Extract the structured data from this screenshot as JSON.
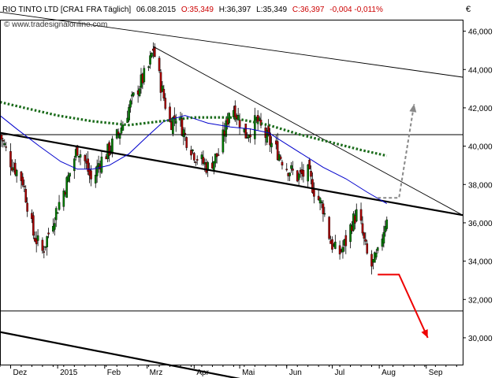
{
  "header": {
    "instrument": "RIO TINTO LTD [CRA1 FRA  Täglich]",
    "date": "06.08.2015",
    "open": "O:35,349",
    "high": "H:36,397",
    "low": "L:35,349",
    "close": "C:36,397",
    "change": "-0,004 -0,011%",
    "watermark": "© www.tradesignalonline.com",
    "currency": "€"
  },
  "colors": {
    "bull": "#008000",
    "bear": "#b00000",
    "ma_short": "#0000cc",
    "ma_long": "#1a6b1a",
    "scenario_down": "#ee0000",
    "scenario_up": "#888888",
    "header_red": "#cc0000"
  },
  "chart_data": {
    "type": "candlestick",
    "x_labels": [
      "Dez",
      "2015",
      "Feb",
      "Mrz",
      "Apr",
      "Mai",
      "Jun",
      "Jul",
      "Aug",
      "Sep"
    ],
    "y_ticks": [
      "30,000",
      "32,000",
      "34,000",
      "36,000",
      "38,000",
      "40,000",
      "42,000",
      "44,000",
      "46,000"
    ],
    "ylim": [
      28.6,
      46.6
    ],
    "xlim": [
      "2014-11-24",
      "2015-09-25"
    ],
    "close_path": [
      [
        "2014-11-24",
        40.6
      ],
      [
        "2014-12-01",
        39.2
      ],
      [
        "2014-12-09",
        38.2
      ],
      [
        "2014-12-16",
        35.4
      ],
      [
        "2014-12-22",
        34.5
      ],
      [
        "2014-12-30",
        36.4
      ],
      [
        "2015-01-07",
        38.1
      ],
      [
        "2015-01-14",
        39.9
      ],
      [
        "2015-01-19",
        39.2
      ],
      [
        "2015-01-24",
        38.0
      ],
      [
        "2015-01-28",
        39.1
      ],
      [
        "2015-02-04",
        39.8
      ],
      [
        "2015-02-11",
        40.8
      ],
      [
        "2015-02-17",
        42.0
      ],
      [
        "2015-02-24",
        43.2
      ],
      [
        "2015-03-02",
        44.1
      ],
      [
        "2015-03-05",
        45.1
      ],
      [
        "2015-03-10",
        43.2
      ],
      [
        "2015-03-16",
        41.2
      ],
      [
        "2015-03-21",
        41.7
      ],
      [
        "2015-03-26",
        40.5
      ],
      [
        "2015-04-02",
        39.5
      ],
      [
        "2015-04-10",
        38.9
      ],
      [
        "2015-04-17",
        39.6
      ],
      [
        "2015-04-22",
        41.0
      ],
      [
        "2015-04-25",
        42.3
      ],
      [
        "2015-04-30",
        41.5
      ],
      [
        "2015-05-05",
        40.6
      ],
      [
        "2015-05-12",
        41.3
      ],
      [
        "2015-05-20",
        40.3
      ],
      [
        "2015-05-27",
        39.6
      ],
      [
        "2015-06-01",
        38.9
      ],
      [
        "2015-06-08",
        38.4
      ],
      [
        "2015-06-15",
        38.6
      ],
      [
        "2015-06-20",
        37.5
      ],
      [
        "2015-06-25",
        36.8
      ],
      [
        "2015-06-30",
        35.0
      ],
      [
        "2015-07-05",
        34.3
      ],
      [
        "2015-07-10",
        35.0
      ],
      [
        "2015-07-14",
        36.0
      ],
      [
        "2015-07-18",
        36.6
      ],
      [
        "2015-07-22",
        35.0
      ],
      [
        "2015-07-26",
        33.6
      ],
      [
        "2015-07-31",
        34.3
      ],
      [
        "2015-08-06",
        36.4
      ]
    ],
    "sma_short_path": [
      [
        "2014-11-24",
        41.6
      ],
      [
        "2014-12-05",
        40.9
      ],
      [
        "2014-12-20",
        40.0
      ],
      [
        "2015-01-03",
        39.2
      ],
      [
        "2015-01-14",
        38.8
      ],
      [
        "2015-01-24",
        38.8
      ],
      [
        "2015-02-04",
        39.0
      ],
      [
        "2015-02-17",
        39.6
      ],
      [
        "2015-03-01",
        40.5
      ],
      [
        "2015-03-12",
        41.3
      ],
      [
        "2015-03-26",
        41.6
      ],
      [
        "2015-04-10",
        41.2
      ],
      [
        "2015-04-25",
        41.0
      ],
      [
        "2015-05-08",
        40.9
      ],
      [
        "2015-05-20",
        40.7
      ],
      [
        "2015-06-01",
        40.1
      ],
      [
        "2015-06-15",
        39.4
      ],
      [
        "2015-06-25",
        38.9
      ],
      [
        "2015-07-10",
        38.3
      ],
      [
        "2015-07-24",
        37.6
      ],
      [
        "2015-08-06",
        37.0
      ]
    ],
    "sma_long_path": [
      [
        "2014-11-24",
        42.3
      ],
      [
        "2014-12-10",
        42.0
      ],
      [
        "2015-01-01",
        41.6
      ],
      [
        "2015-01-24",
        41.3
      ],
      [
        "2015-02-17",
        41.1
      ],
      [
        "2015-03-10",
        41.3
      ],
      [
        "2015-04-01",
        41.5
      ],
      [
        "2015-04-25",
        41.5
      ],
      [
        "2015-05-20",
        41.1
      ],
      [
        "2015-06-10",
        40.6
      ],
      [
        "2015-06-30",
        40.2
      ],
      [
        "2015-07-20",
        39.8
      ],
      [
        "2015-08-06",
        39.5
      ]
    ],
    "trendlines": [
      {
        "style": "thin",
        "from": [
          "2014-11-24",
          47.0
        ],
        "to": [
          "2015-09-25",
          43.6
        ]
      },
      {
        "style": "thin",
        "from": [
          "2015-03-05",
          45.2
        ],
        "to": [
          "2015-09-25",
          36.4
        ]
      },
      {
        "style": "bold",
        "from": [
          "2014-11-24",
          40.7
        ],
        "to": [
          "2015-09-25",
          36.4
        ]
      },
      {
        "style": "bold",
        "from": [
          "2014-11-24",
          30.3
        ],
        "to": [
          "2015-05-05",
          27.8
        ]
      },
      {
        "style": "horizontal",
        "from": [
          "2014-11-24",
          40.6
        ],
        "to": [
          "2015-09-25",
          40.6
        ]
      },
      {
        "style": "horizontal",
        "from": [
          "2014-11-24",
          31.4
        ],
        "to": [
          "2015-09-25",
          31.4
        ]
      }
    ],
    "scenarios": [
      {
        "name": "down",
        "points": [
          [
            "2015-07-31",
            33.3
          ],
          [
            "2015-08-14",
            33.3
          ],
          [
            "2015-09-02",
            30.0
          ]
        ]
      },
      {
        "name": "up",
        "points": [
          [
            "2015-07-31",
            37.3
          ],
          [
            "2015-08-14",
            37.3
          ],
          [
            "2015-08-24",
            42.2
          ]
        ]
      }
    ]
  }
}
